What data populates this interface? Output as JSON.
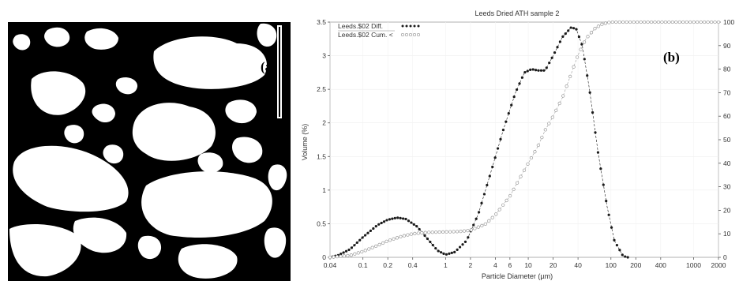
{
  "panels": {
    "a_label": "(a)",
    "b_label": "(b)"
  },
  "micrograph": {
    "description_icon": "binary-micrograph-image"
  },
  "chart_data": {
    "type": "line",
    "title": "Leeds Dried ATH   sample 2",
    "xlabel": "Particle Diameter (µm)",
    "ylabel": "Volume (%)",
    "x_scale": "log",
    "xlim": [
      0.04,
      2000
    ],
    "ylim": [
      0,
      3.5
    ],
    "y2lim": [
      0,
      100
    ],
    "x_ticks": [
      "0.04",
      "0.1",
      "0.2",
      "0.4",
      "1",
      "2",
      "4",
      "6",
      "10",
      "20",
      "40",
      "100",
      "200",
      "400",
      "1000",
      "2000"
    ],
    "x_tick_values": [
      0.04,
      0.1,
      0.2,
      0.4,
      1,
      2,
      4,
      6,
      10,
      20,
      40,
      100,
      200,
      400,
      1000,
      2000
    ],
    "y_ticks": [
      "0",
      "0.5",
      "1",
      "1.5",
      "2",
      "2.5",
      "3",
      "3.5"
    ],
    "y_tick_values": [
      0,
      0.5,
      1,
      1.5,
      2,
      2.5,
      3,
      3.5
    ],
    "y2_ticks": [
      "0",
      "10",
      "20",
      "30",
      "40",
      "50",
      "60",
      "70",
      "80",
      "90",
      "100"
    ],
    "y2_tick_values": [
      0,
      10,
      20,
      30,
      40,
      50,
      60,
      70,
      80,
      90,
      100
    ],
    "legend": {
      "position": "top-left"
    },
    "series": [
      {
        "name": "Leeds.$02 Diff.",
        "axis": "left",
        "marker": "filled-dot",
        "color": "#1a1a1a",
        "points": [
          [
            0.04,
            0.0
          ],
          [
            0.05,
            0.03
          ],
          [
            0.07,
            0.12
          ],
          [
            0.1,
            0.3
          ],
          [
            0.15,
            0.48
          ],
          [
            0.2,
            0.56
          ],
          [
            0.26,
            0.59
          ],
          [
            0.33,
            0.57
          ],
          [
            0.45,
            0.46
          ],
          [
            0.6,
            0.28
          ],
          [
            0.8,
            0.1
          ],
          [
            1.0,
            0.04
          ],
          [
            1.3,
            0.08
          ],
          [
            1.8,
            0.25
          ],
          [
            2.5,
            0.65
          ],
          [
            3.5,
            1.25
          ],
          [
            5,
            1.9
          ],
          [
            7,
            2.45
          ],
          [
            9,
            2.75
          ],
          [
            11,
            2.8
          ],
          [
            13,
            2.78
          ],
          [
            16,
            2.78
          ],
          [
            20,
            3.0
          ],
          [
            26,
            3.28
          ],
          [
            33,
            3.42
          ],
          [
            38,
            3.4
          ],
          [
            45,
            3.15
          ],
          [
            55,
            2.5
          ],
          [
            70,
            1.55
          ],
          [
            90,
            0.75
          ],
          [
            110,
            0.25
          ],
          [
            140,
            0.02
          ],
          [
            160,
            0.0
          ]
        ]
      },
      {
        "name": "Leeds.$02 Cum. <",
        "axis": "right",
        "marker": "open-circle",
        "color": "#9a9a9a",
        "points": [
          [
            0.04,
            0
          ],
          [
            0.07,
            0.8
          ],
          [
            0.1,
            2.5
          ],
          [
            0.15,
            5
          ],
          [
            0.2,
            7
          ],
          [
            0.3,
            9
          ],
          [
            0.4,
            10
          ],
          [
            0.6,
            10.6
          ],
          [
            1,
            10.8
          ],
          [
            1.5,
            11.0
          ],
          [
            2,
            11.5
          ],
          [
            3,
            14
          ],
          [
            4,
            18
          ],
          [
            6,
            26
          ],
          [
            8,
            34
          ],
          [
            10,
            40
          ],
          [
            13,
            47
          ],
          [
            16,
            54
          ],
          [
            20,
            60
          ],
          [
            26,
            68
          ],
          [
            33,
            78
          ],
          [
            40,
            86
          ],
          [
            50,
            93
          ],
          [
            65,
            97.5
          ],
          [
            80,
            99.3
          ],
          [
            100,
            100
          ],
          [
            200,
            100
          ],
          [
            400,
            100
          ],
          [
            1000,
            100
          ],
          [
            2000,
            100
          ]
        ]
      }
    ]
  }
}
